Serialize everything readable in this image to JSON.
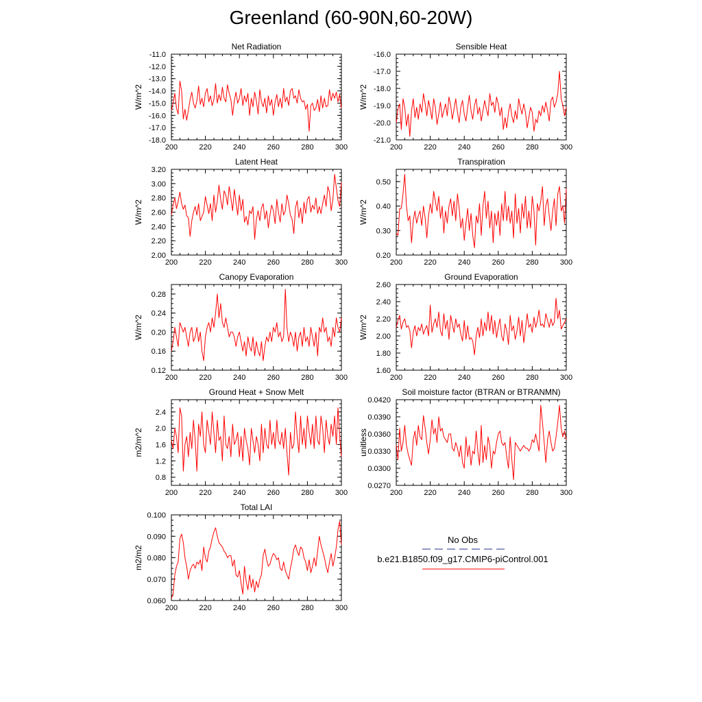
{
  "figure_title": "Greenland (60-90N,60-20W)",
  "colors": {
    "series": "#ff0000",
    "obs": "#1f2d8a",
    "axis": "#000000"
  },
  "legend": {
    "obs_label": "No Obs",
    "model_label": "b.e21.B1850.f09_g17.CMIP6-piControl.001"
  },
  "chart_data": [
    {
      "type": "line",
      "title": "Net Radiation",
      "ylabel": "W/m^2",
      "xlim": [
        200,
        300
      ],
      "ylim": [
        -18,
        -11
      ],
      "xticks": [
        200,
        220,
        240,
        260,
        280,
        300
      ],
      "yticks": [
        -18,
        -17,
        -16,
        -15,
        -14,
        -13,
        -12,
        -11
      ],
      "ydecimals": 1,
      "x_start": 200,
      "x_step": 1,
      "values": [
        -15.6,
        -15.0,
        -14.2,
        -15.4,
        -15.9,
        -13.2,
        -14.0,
        -16.3,
        -15.5,
        -16.4,
        -15.6,
        -14.7,
        -14.1,
        -15.0,
        -15.4,
        -14.8,
        -13.6,
        -15.1,
        -14.6,
        -15.3,
        -14.2,
        -13.8,
        -14.9,
        -14.4,
        -15.2,
        -14.7,
        -13.4,
        -15.0,
        -14.3,
        -14.8,
        -13.7,
        -14.6,
        -14.9,
        -13.5,
        -14.2,
        -14.7,
        -16.0,
        -14.8,
        -14.1,
        -15.0,
        -14.6,
        -13.8,
        -15.2,
        -14.4,
        -14.9,
        -14.2,
        -16.0,
        -14.6,
        -15.3,
        -14.1,
        -14.8,
        -15.9,
        -13.9,
        -14.9,
        -15.3,
        -14.6,
        -15.8,
        -14.4,
        -15.2,
        -14.7,
        -16.0,
        -14.9,
        -14.3,
        -15.3,
        -14.6,
        -15.4,
        -13.8,
        -14.9,
        -14.5,
        -15.2,
        -14.0,
        -13.8,
        -14.6,
        -14.4,
        -15.0,
        -13.9,
        -14.6,
        -14.9,
        -14.8,
        -15.5,
        -15.1,
        -17.3,
        -15.2,
        -15.0,
        -15.6,
        -15.4,
        -14.7,
        -15.7,
        -14.4,
        -15.4,
        -14.6,
        -15.3,
        -15.2,
        -13.9,
        -14.8,
        -14.2,
        -14.6,
        -14.1,
        -14.9,
        -14.3,
        -15.4
      ]
    },
    {
      "type": "line",
      "title": "Sensible Heat",
      "ylabel": "W/m^2",
      "xlim": [
        200,
        300
      ],
      "ylim": [
        -21,
        -16
      ],
      "xticks": [
        200,
        220,
        240,
        260,
        280,
        300
      ],
      "yticks": [
        -21,
        -20,
        -19,
        -18,
        -17,
        -16
      ],
      "ydecimals": 1,
      "x_start": 200,
      "x_step": 1,
      "values": [
        -20.0,
        -19.2,
        -18.9,
        -20.4,
        -18.6,
        -19.1,
        -20.2,
        -19.5,
        -20.8,
        -19.3,
        -18.6,
        -19.7,
        -19.1,
        -19.8,
        -18.9,
        -19.4,
        -18.3,
        -18.9,
        -19.6,
        -18.7,
        -19.2,
        -19.8,
        -18.6,
        -19.1,
        -20.1,
        -19.5,
        -18.8,
        -19.7,
        -19.3,
        -18.9,
        -19.6,
        -18.5,
        -19.0,
        -19.8,
        -19.2,
        -18.6,
        -19.4,
        -20.0,
        -19.1,
        -18.7,
        -19.5,
        -19.9,
        -19.1,
        -18.4,
        -19.3,
        -19.8,
        -19.0,
        -18.6,
        -19.5,
        -19.1,
        -19.9,
        -19.3,
        -18.7,
        -19.2,
        -19.6,
        -18.3,
        -19.0,
        -18.8,
        -19.4,
        -18.5,
        -18.9,
        -19.6,
        -19.1,
        -20.4,
        -19.7,
        -20.3,
        -19.4,
        -18.9,
        -19.6,
        -20.0,
        -19.3,
        -19.8,
        -18.6,
        -19.1,
        -19.5,
        -18.9,
        -19.4,
        -20.3,
        -19.7,
        -19.1,
        -19.4,
        -20.5,
        -19.8,
        -20.0,
        -19.3,
        -19.6,
        -19.0,
        -19.4,
        -18.8,
        -19.3,
        -19.9,
        -18.7,
        -18.5,
        -19.1,
        -18.8,
        -18.3,
        -17.0,
        -18.6,
        -19.0,
        -19.6,
        -19.1
      ]
    },
    {
      "type": "line",
      "title": "Latent Heat",
      "ylabel": "W/m^2",
      "xlim": [
        200,
        300
      ],
      "ylim": [
        2.0,
        3.2
      ],
      "xticks": [
        200,
        220,
        240,
        260,
        280,
        300
      ],
      "yticks": [
        2.0,
        2.2,
        2.4,
        2.6,
        2.8,
        3.0,
        3.2
      ],
      "ydecimals": 2,
      "x_start": 200,
      "x_step": 1,
      "values": [
        2.56,
        2.7,
        2.8,
        2.65,
        2.75,
        2.88,
        2.72,
        2.64,
        2.7,
        2.55,
        2.52,
        2.26,
        2.48,
        2.6,
        2.68,
        2.56,
        2.72,
        2.48,
        2.54,
        2.6,
        2.82,
        2.7,
        2.58,
        2.72,
        2.48,
        2.84,
        2.6,
        2.76,
        2.98,
        2.78,
        2.64,
        2.9,
        2.84,
        2.7,
        2.96,
        2.8,
        2.62,
        2.92,
        2.74,
        2.56,
        2.84,
        2.62,
        2.78,
        2.46,
        2.54,
        2.42,
        2.62,
        2.58,
        2.68,
        2.22,
        2.5,
        2.62,
        2.48,
        2.66,
        2.72,
        2.5,
        2.62,
        2.38,
        2.56,
        2.7,
        2.62,
        2.44,
        2.78,
        2.6,
        2.46,
        2.72,
        2.56,
        2.62,
        2.84,
        2.72,
        2.56,
        2.5,
        2.3,
        2.66,
        2.76,
        2.52,
        2.66,
        2.44,
        2.74,
        2.58,
        2.78,
        2.82,
        2.6,
        2.7,
        2.64,
        2.8,
        2.58,
        2.68,
        2.58,
        2.72,
        2.84,
        2.68,
        2.96,
        2.88,
        2.62,
        2.78,
        3.13,
        2.94,
        2.76,
        2.68,
        3.02
      ]
    },
    {
      "type": "line",
      "title": "Transpiration",
      "ylabel": "W/m^2",
      "xlim": [
        200,
        300
      ],
      "ylim": [
        0.2,
        0.55
      ],
      "xticks": [
        200,
        220,
        240,
        260,
        280,
        300
      ],
      "yticks": [
        0.2,
        0.3,
        0.4,
        0.5
      ],
      "ydecimals": 2,
      "x_start": 200,
      "x_step": 1,
      "values": [
        0.29,
        0.28,
        0.39,
        0.39,
        0.45,
        0.53,
        0.4,
        0.34,
        0.36,
        0.25,
        0.34,
        0.38,
        0.33,
        0.36,
        0.38,
        0.32,
        0.4,
        0.35,
        0.27,
        0.36,
        0.41,
        0.37,
        0.46,
        0.42,
        0.38,
        0.44,
        0.35,
        0.4,
        0.29,
        0.38,
        0.33,
        0.4,
        0.43,
        0.36,
        0.42,
        0.34,
        0.45,
        0.39,
        0.31,
        0.35,
        0.26,
        0.33,
        0.39,
        0.3,
        0.37,
        0.28,
        0.23,
        0.36,
        0.33,
        0.41,
        0.28,
        0.4,
        0.46,
        0.35,
        0.42,
        0.31,
        0.38,
        0.25,
        0.37,
        0.32,
        0.38,
        0.28,
        0.41,
        0.34,
        0.46,
        0.34,
        0.4,
        0.33,
        0.38,
        0.27,
        0.45,
        0.33,
        0.39,
        0.29,
        0.41,
        0.35,
        0.44,
        0.31,
        0.38,
        0.31,
        0.44,
        0.38,
        0.24,
        0.41,
        0.38,
        0.42,
        0.48,
        0.32,
        0.4,
        0.43,
        0.36,
        0.3,
        0.38,
        0.43,
        0.32,
        0.45,
        0.48,
        0.38,
        0.4,
        0.33,
        0.47
      ]
    },
    {
      "type": "line",
      "title": "Canopy Evaporation",
      "ylabel": "W/m^2",
      "xlim": [
        200,
        300
      ],
      "ylim": [
        0.12,
        0.3
      ],
      "xticks": [
        200,
        220,
        240,
        260,
        280,
        300
      ],
      "yticks": [
        0.12,
        0.16,
        0.2,
        0.24,
        0.28
      ],
      "ydecimals": 2,
      "x_start": 200,
      "x_step": 1,
      "values": [
        0.16,
        0.18,
        0.21,
        0.19,
        0.17,
        0.22,
        0.21,
        0.2,
        0.21,
        0.19,
        0.17,
        0.2,
        0.21,
        0.18,
        0.19,
        0.21,
        0.18,
        0.2,
        0.16,
        0.14,
        0.19,
        0.21,
        0.22,
        0.2,
        0.23,
        0.21,
        0.24,
        0.28,
        0.23,
        0.26,
        0.22,
        0.21,
        0.23,
        0.21,
        0.19,
        0.2,
        0.2,
        0.19,
        0.17,
        0.19,
        0.2,
        0.18,
        0.16,
        0.18,
        0.15,
        0.19,
        0.17,
        0.16,
        0.19,
        0.15,
        0.18,
        0.16,
        0.15,
        0.18,
        0.14,
        0.17,
        0.19,
        0.18,
        0.2,
        0.18,
        0.21,
        0.2,
        0.22,
        0.19,
        0.2,
        0.18,
        0.19,
        0.29,
        0.21,
        0.18,
        0.2,
        0.19,
        0.17,
        0.2,
        0.16,
        0.19,
        0.2,
        0.17,
        0.21,
        0.18,
        0.19,
        0.17,
        0.21,
        0.19,
        0.17,
        0.2,
        0.15,
        0.21,
        0.2,
        0.23,
        0.2,
        0.21,
        0.18,
        0.19,
        0.17,
        0.21,
        0.19,
        0.23,
        0.21,
        0.2,
        0.23
      ]
    },
    {
      "type": "line",
      "title": "Ground Evaporation",
      "ylabel": "W/m^2",
      "xlim": [
        200,
        300
      ],
      "ylim": [
        1.6,
        2.6
      ],
      "xticks": [
        200,
        220,
        240,
        260,
        280,
        300
      ],
      "yticks": [
        1.6,
        1.8,
        2.0,
        2.2,
        2.4,
        2.6
      ],
      "ydecimals": 2,
      "x_start": 200,
      "x_step": 1,
      "values": [
        2.1,
        2.18,
        2.24,
        2.08,
        2.16,
        2.2,
        2.1,
        2.12,
        2.06,
        1.86,
        2.04,
        2.12,
        2.0,
        2.1,
        2.06,
        2.14,
        2.02,
        2.08,
        2.12,
        2.0,
        2.36,
        2.04,
        2.14,
        2.2,
        2.1,
        2.28,
        2.06,
        2.0,
        2.26,
        2.08,
        2.18,
        1.96,
        2.24,
        2.14,
        2.04,
        2.2,
        2.1,
        2.14,
        2.02,
        1.94,
        2.18,
        1.96,
        2.12,
        1.96,
        1.98,
        1.94,
        1.78,
        2.0,
        2.1,
        1.98,
        2.2,
        2.0,
        2.16,
        2.06,
        2.28,
        2.06,
        2.24,
        2.02,
        2.18,
        1.98,
        2.1,
        2.2,
        2.0,
        1.94,
        2.14,
        2.06,
        1.9,
        2.24,
        2.06,
        2.12,
        1.96,
        2.06,
        2.22,
        2.0,
        2.18,
        1.92,
        2.08,
        2.26,
        2.1,
        2.14,
        2.04,
        2.22,
        2.1,
        2.18,
        2.3,
        2.12,
        2.14,
        2.1,
        2.26,
        2.18,
        2.1,
        2.2,
        2.12,
        2.16,
        2.44,
        2.2,
        2.3,
        2.08,
        2.12,
        2.16,
        2.2
      ]
    },
    {
      "type": "line",
      "title": "Ground Heat + Snow Melt",
      "ylabel": "m2/m^2",
      "xlim": [
        200,
        300
      ],
      "ylim": [
        0.6,
        2.7
      ],
      "xticks": [
        200,
        220,
        240,
        260,
        280,
        300
      ],
      "yticks": [
        0.8,
        1.2,
        1.6,
        2.0,
        2.4
      ],
      "ydecimals": 1,
      "x_start": 200,
      "x_step": 1,
      "values": [
        1.7,
        1.5,
        2.0,
        1.8,
        1.4,
        2.5,
        2.3,
        0.95,
        1.6,
        1.8,
        1.3,
        1.9,
        1.5,
        2.2,
        1.7,
        0.95,
        2.1,
        1.8,
        2.4,
        1.6,
        1.4,
        2.2,
        1.9,
        1.6,
        2.4,
        1.9,
        1.4,
        2.2,
        1.7,
        1.8,
        1.2,
        2.3,
        1.6,
        1.5,
        1.8,
        1.3,
        2.1,
        1.6,
        1.7,
        1.9,
        1.3,
        1.8,
        1.2,
        2.0,
        1.7,
        1.5,
        1.1,
        2.0,
        1.7,
        1.4,
        1.8,
        1.6,
        1.2,
        2.1,
        1.4,
        2.0,
        1.6,
        1.5,
        2.2,
        1.6,
        1.9,
        1.5,
        2.2,
        1.7,
        1.6,
        1.9,
        1.5,
        2.0,
        1.4,
        0.85,
        1.9,
        1.5,
        1.6,
        2.4,
        1.8,
        1.4,
        2.3,
        1.6,
        2.0,
        1.5,
        2.3,
        1.9,
        1.6,
        2.1,
        1.5,
        2.3,
        1.7,
        1.6,
        2.3,
        2.0,
        1.4,
        2.2,
        1.8,
        1.6,
        2.1,
        1.8,
        2.3,
        1.6,
        2.5,
        1.8,
        1.3
      ]
    },
    {
      "type": "line",
      "title": "Soil moisture factor (BTRAN or BTRANMN)",
      "ylabel": "unitless",
      "xlim": [
        200,
        300
      ],
      "ylim": [
        0.027,
        0.042
      ],
      "xticks": [
        200,
        220,
        240,
        260,
        280,
        300
      ],
      "yticks": [
        0.027,
        0.03,
        0.033,
        0.036,
        0.039,
        0.042
      ],
      "ydecimals": 4,
      "x_start": 200,
      "x_step": 1,
      "values": [
        0.034,
        0.0315,
        0.037,
        0.033,
        0.0345,
        0.0375,
        0.034,
        0.0325,
        0.0315,
        0.0305,
        0.035,
        0.0365,
        0.034,
        0.0375,
        0.0355,
        0.035,
        0.0392,
        0.037,
        0.0345,
        0.0325,
        0.035,
        0.0385,
        0.036,
        0.037,
        0.0345,
        0.039,
        0.0365,
        0.037,
        0.0355,
        0.035,
        0.0345,
        0.036,
        0.036,
        0.0335,
        0.033,
        0.0345,
        0.0335,
        0.032,
        0.034,
        0.031,
        0.03,
        0.0355,
        0.032,
        0.034,
        0.0305,
        0.033,
        0.0325,
        0.0365,
        0.033,
        0.0305,
        0.0375,
        0.031,
        0.034,
        0.0315,
        0.0355,
        0.034,
        0.03,
        0.033,
        0.0325,
        0.0345,
        0.036,
        0.0365,
        0.0345,
        0.034,
        0.0345,
        0.032,
        0.03,
        0.0355,
        0.0315,
        0.028,
        0.0345,
        0.034,
        0.0335,
        0.033,
        0.0335,
        0.034,
        0.0335,
        0.0335,
        0.033,
        0.0335,
        0.035,
        0.0345,
        0.036,
        0.0345,
        0.033,
        0.041,
        0.038,
        0.0345,
        0.031,
        0.035,
        0.0365,
        0.0345,
        0.033,
        0.0335,
        0.0355,
        0.038,
        0.041,
        0.037,
        0.0355,
        0.0365,
        0.035
      ]
    },
    {
      "type": "line",
      "title": "Total LAI",
      "ylabel": "m2/m2",
      "xlim": [
        200,
        300
      ],
      "ylim": [
        0.06,
        0.1
      ],
      "xticks": [
        200,
        220,
        240,
        260,
        280,
        300
      ],
      "yticks": [
        0.06,
        0.07,
        0.08,
        0.09,
        0.1
      ],
      "ydecimals": 3,
      "x_start": 200,
      "x_step": 1,
      "values": [
        0.061,
        0.063,
        0.072,
        0.076,
        0.078,
        0.089,
        0.091,
        0.087,
        0.08,
        0.076,
        0.07,
        0.074,
        0.076,
        0.077,
        0.075,
        0.078,
        0.077,
        0.079,
        0.074,
        0.085,
        0.08,
        0.078,
        0.083,
        0.085,
        0.089,
        0.092,
        0.094,
        0.09,
        0.087,
        0.086,
        0.085,
        0.083,
        0.082,
        0.08,
        0.081,
        0.081,
        0.076,
        0.079,
        0.072,
        0.071,
        0.074,
        0.068,
        0.063,
        0.076,
        0.069,
        0.065,
        0.072,
        0.066,
        0.07,
        0.064,
        0.069,
        0.066,
        0.07,
        0.072,
        0.081,
        0.084,
        0.079,
        0.076,
        0.077,
        0.08,
        0.082,
        0.081,
        0.079,
        0.08,
        0.075,
        0.074,
        0.078,
        0.074,
        0.072,
        0.07,
        0.075,
        0.079,
        0.084,
        0.086,
        0.083,
        0.081,
        0.085,
        0.084,
        0.08,
        0.078,
        0.074,
        0.079,
        0.073,
        0.076,
        0.08,
        0.076,
        0.083,
        0.09,
        0.086,
        0.083,
        0.08,
        0.076,
        0.073,
        0.078,
        0.082,
        0.076,
        0.08,
        0.085,
        0.093,
        0.097,
        0.086
      ]
    }
  ]
}
